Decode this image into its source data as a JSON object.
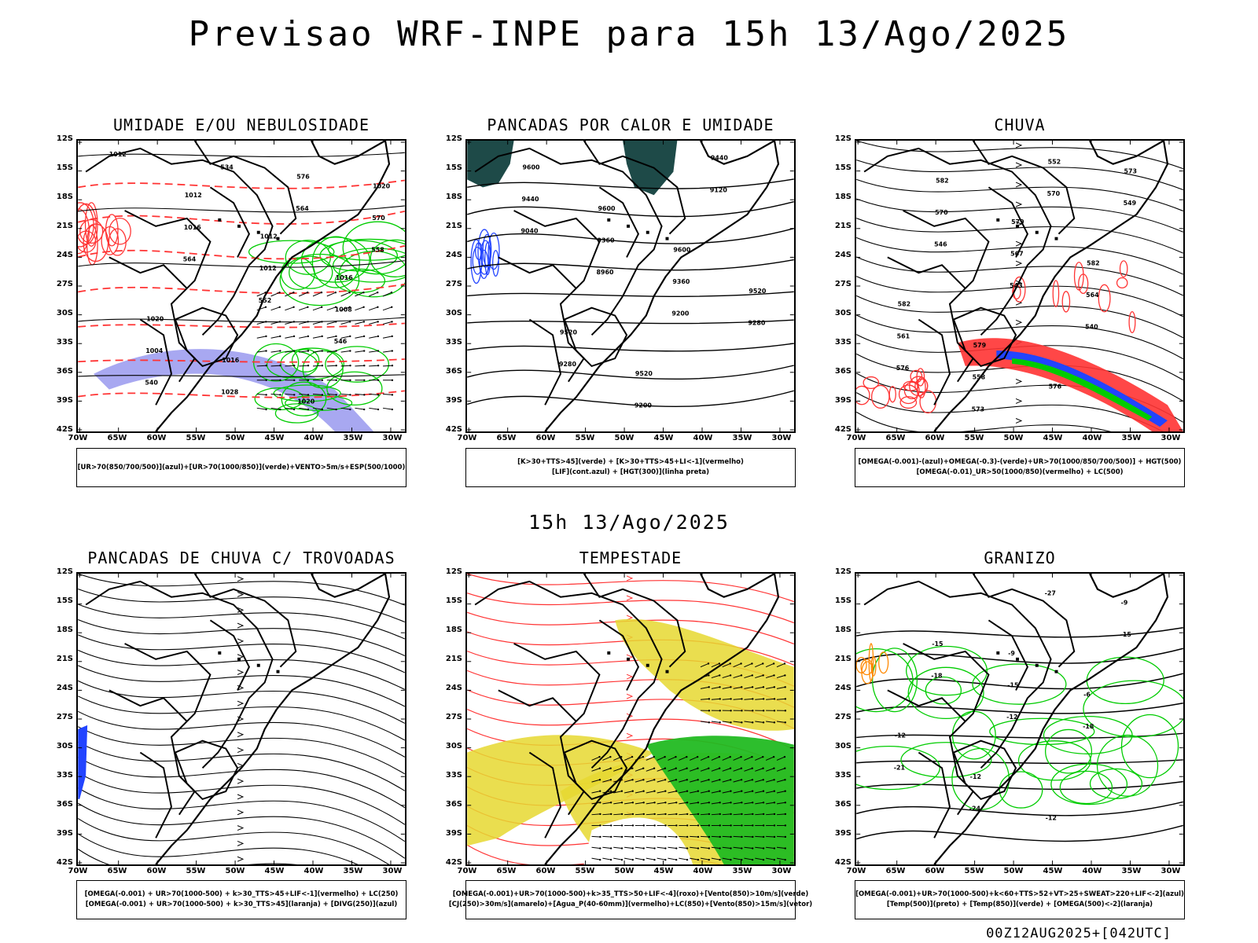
{
  "title": "Previsao WRF-INPE  para 15h 13/Ago/2025",
  "mid_title": "15h 13/Ago/2025",
  "footer": "00Z12AUG2025+[042UTC]",
  "lat_labels": [
    "12S",
    "15S",
    "18S",
    "21S",
    "24S",
    "27S",
    "30S",
    "33S",
    "36S",
    "39S",
    "42S"
  ],
  "lon_labels": [
    "70W",
    "65W",
    "60W",
    "55W",
    "50W",
    "45W",
    "40W",
    "35W",
    "30W"
  ],
  "colors": {
    "frame": "#000000",
    "green": "#00cc00",
    "red": "#ff3333",
    "blue": "#2244ff",
    "lavender": "#9999ee",
    "yellow": "#e6d830",
    "darkteal": "#1e4a48",
    "orange": "#ff8800"
  },
  "panels": [
    {
      "title": "UMIDADE E/OU NEBULOSIDADE",
      "legend": [
        "[UR>70(850/700/500)](azul)+[UR>70(1000/850)](verde)+VENTO>5m/s+ESP(500/1000)"
      ],
      "labels": [
        "1012",
        "1012",
        "1012",
        "1016",
        "1020",
        "1016",
        "1020",
        "1020",
        "1016",
        "1012",
        "1008",
        "1004",
        "1028",
        "576",
        "570",
        "564",
        "552",
        "546",
        "540",
        "534",
        "564",
        "558"
      ]
    },
    {
      "title": "PANCADAS POR CALOR E UMIDADE",
      "legend": [
        "[K>30+TTS>45](verde) + [K>30+TTS>45+LI<-1](vermelho)",
        "[LIF](cont.azul) + [HGT(300)](linha preta)"
      ],
      "labels": [
        "9600",
        "9600",
        "9600",
        "9520",
        "9520",
        "9520",
        "9440",
        "9440",
        "9360",
        "9360",
        "9280",
        "9280",
        "9200",
        "9120",
        "9040",
        "8960",
        "9200"
      ]
    },
    {
      "title": "CHUVA",
      "legend": [
        "[OMEGA(-0.001)-(azul)+OMEGA(-0.3)-(verde)+UR>70(1000/850/700/500)] + HGT(500)",
        "[OMEGA(-0.01)_UR>50(1000/850)(vermelho) + LC(500)"
      ],
      "labels": [
        "582",
        "579",
        "582",
        "582",
        "579",
        "576",
        "573",
        "570",
        "567",
        "564",
        "561",
        "558",
        "552",
        "549",
        "546",
        "543",
        "540",
        "576",
        "573",
        "570"
      ]
    },
    {
      "title": "PANCADAS DE CHUVA C/ TROVOADAS",
      "legend": [
        "[OMEGA(-0.001) + UR>70(1000-500) + k>30_TTS>45+LIF<-1](vermelho) + LC(250)",
        "[OMEGA(-0.001) + UR>70(1000-500) + k>30_TTS>45](laranja) + [DIVG(250)](azul)"
      ],
      "labels": []
    },
    {
      "title": "TEMPESTADE",
      "legend": [
        "[OMEGA(-0.001)+UR>70(1000-500)+k>35_TTS>50+LIF<-4](roxo)+[Vento(850)>10m/s](verde)",
        "[CJ(250)>30m/s](amarelo)+[Agua_P(40-60mm)](vermelho)+LC(850)+[Vento(850)>15m/s](vetor)"
      ],
      "labels": []
    },
    {
      "title": "GRANIZO",
      "legend": [
        "[OMEGA(-0.001)+UR>70(1000-500)+k<60+TTS>52+VT>25+SWEAT>220+LIF<-2](azul)",
        "[Temp(500)](preto) + [Temp(850)](verde) + [OMEGA(500)<-2](laranja)"
      ],
      "labels": [
        "-9",
        "-6",
        "-12",
        "-12",
        "-12",
        "-9",
        "-15",
        "-15",
        "-18",
        "-21",
        "-24",
        "-27",
        "-15",
        "-18",
        "-12"
      ]
    }
  ]
}
